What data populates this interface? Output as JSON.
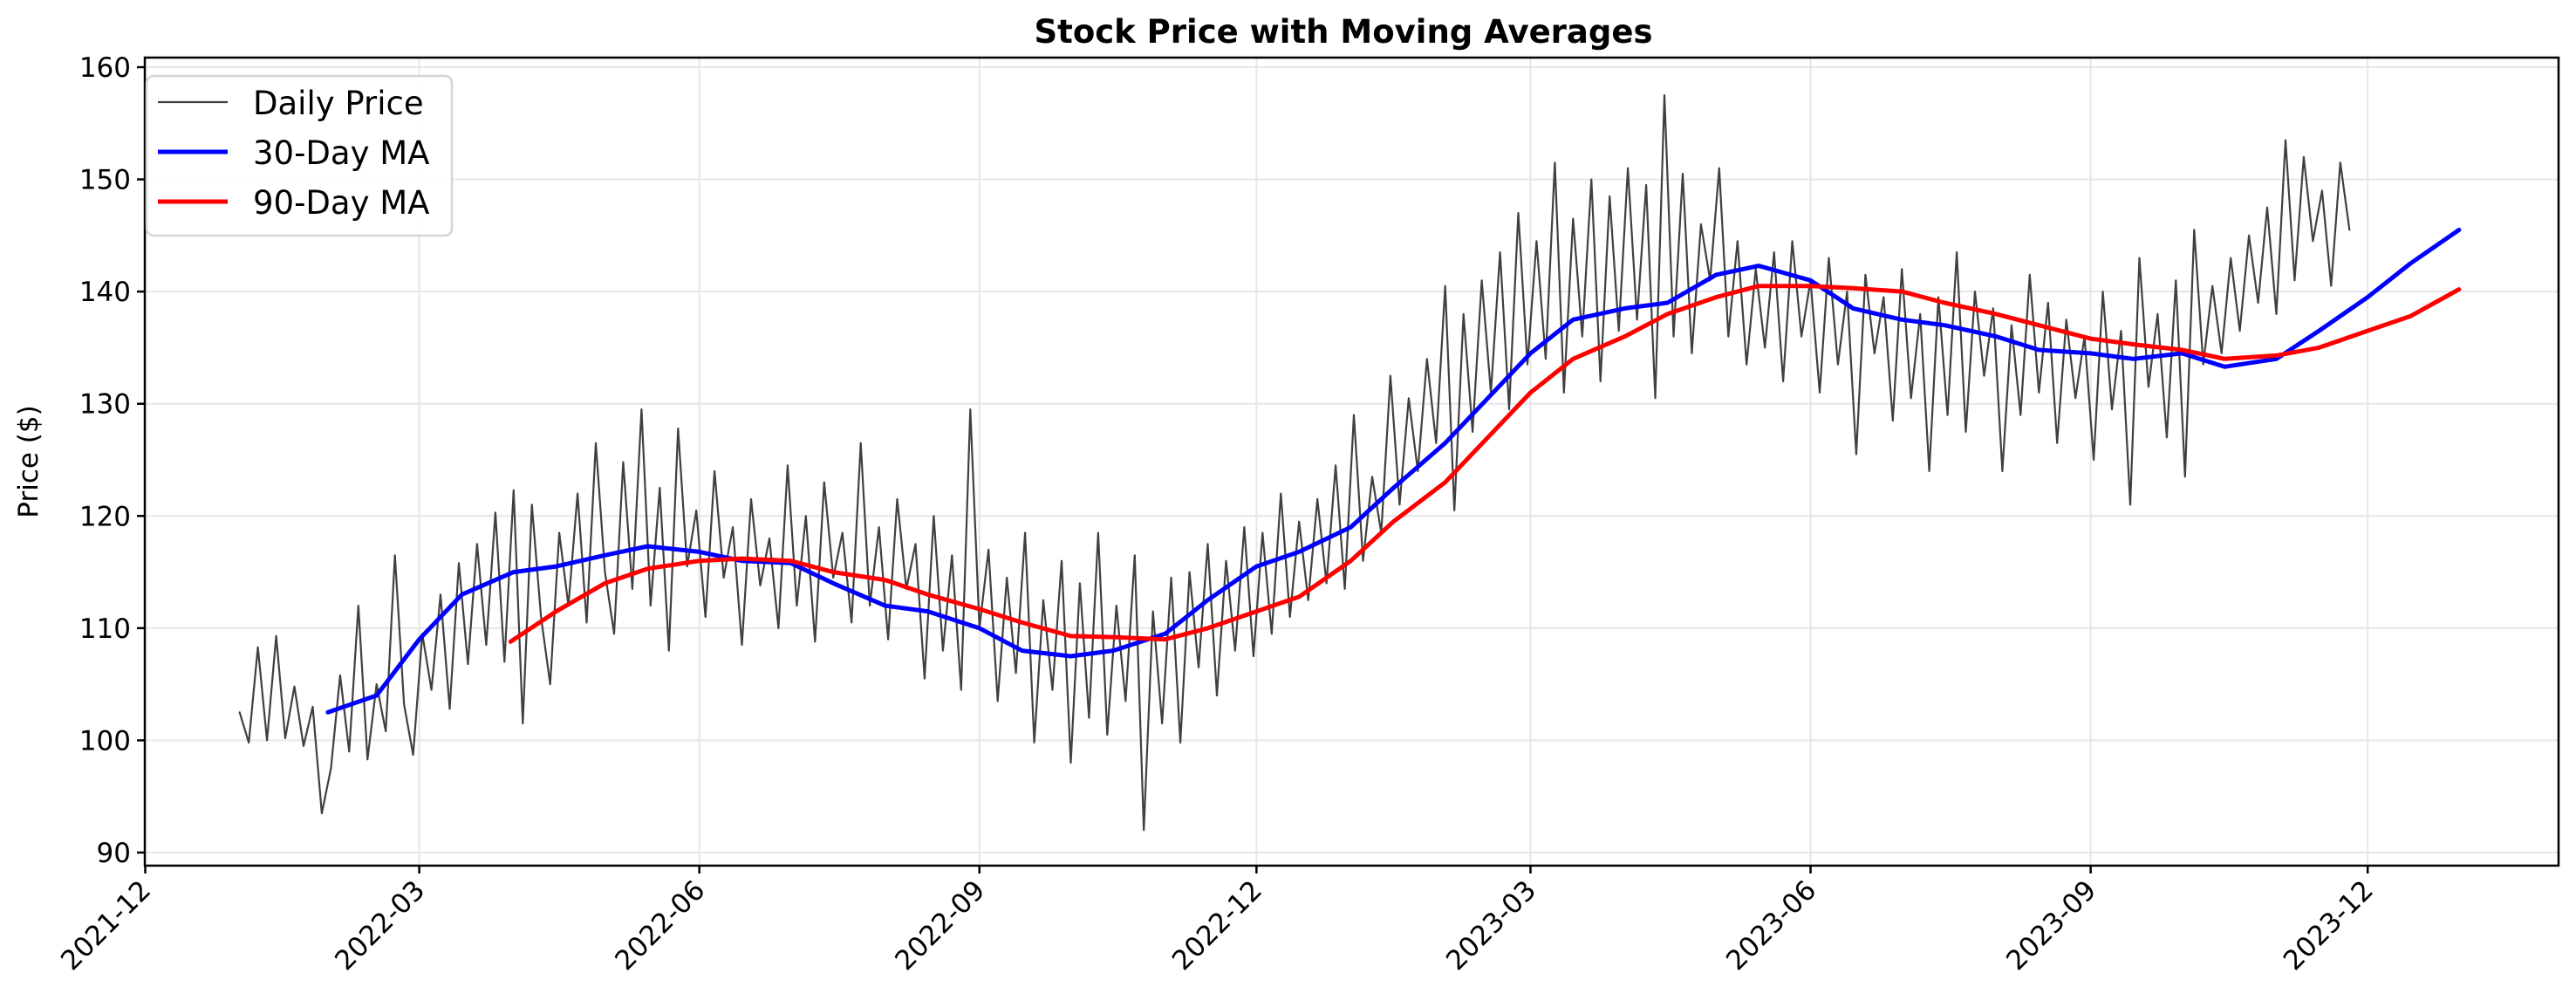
{
  "chart_data": {
    "type": "line",
    "title": "Stock Price with Moving Averages",
    "xlabel": "",
    "ylabel": "Price ($)",
    "ylim": [
      89,
      161
    ],
    "xlim": [
      "2021-11-25",
      "2024-02-05"
    ],
    "yticks": [
      90,
      100,
      110,
      120,
      130,
      140,
      150,
      160
    ],
    "xticks": [
      "2021-12",
      "2022-03",
      "2022-06",
      "2022-09",
      "2022-12",
      "2023-03",
      "2023-06",
      "2023-09",
      "2023-12"
    ],
    "grid": true,
    "legend": {
      "position": "top-left",
      "entries": [
        "Daily Price",
        "30-Day MA",
        "90-Day MA"
      ]
    },
    "series": [
      {
        "name": "Daily Price",
        "color": "#404040",
        "start_date": "2022-01-01",
        "step_days": 3,
        "values": [
          102.5,
          99.8,
          108.3,
          100.0,
          109.3,
          100.2,
          104.8,
          99.5,
          103.0,
          93.5,
          97.5,
          105.8,
          99.0,
          112.0,
          98.3,
          105.0,
          100.8,
          116.5,
          103.2,
          98.7,
          109.5,
          104.5,
          113.0,
          102.8,
          115.8,
          106.8,
          117.5,
          108.5,
          120.3,
          107.0,
          122.3,
          101.5,
          121.0,
          111.0,
          105.0,
          118.5,
          112.0,
          122.0,
          110.5,
          126.5,
          115.0,
          109.5,
          124.8,
          113.5,
          129.5,
          112.0,
          122.5,
          108.0,
          127.8,
          115.5,
          120.5,
          111.0,
          124.0,
          114.5,
          119.0,
          108.5,
          121.5,
          113.8,
          118.0,
          110.0,
          124.5,
          112.0,
          120.0,
          108.8,
          123.0,
          114.5,
          118.5,
          110.5,
          126.5,
          112.0,
          119.0,
          109.0,
          121.5,
          113.5,
          117.5,
          105.5,
          120.0,
          108.0,
          116.5,
          104.5,
          129.5,
          110.0,
          117.0,
          103.5,
          114.5,
          106.0,
          118.5,
          99.8,
          112.5,
          104.5,
          116.0,
          98.0,
          114.0,
          102.0,
          118.5,
          100.5,
          112.0,
          103.5,
          116.5,
          92.0,
          111.5,
          101.5,
          114.5,
          99.8,
          115.0,
          106.5,
          117.5,
          104.0,
          116.0,
          108.0,
          119.0,
          107.5,
          118.5,
          109.5,
          122.0,
          111.0,
          119.5,
          112.5,
          121.5,
          114.0,
          124.5,
          113.5,
          129.0,
          116.0,
          123.5,
          118.5,
          132.5,
          121.0,
          130.5,
          124.0,
          134.0,
          126.5,
          140.5,
          120.5,
          138.0,
          127.5,
          141.0,
          131.0,
          143.5,
          129.5,
          147.0,
          133.5,
          144.5,
          134.0,
          151.5,
          131.0,
          146.5,
          136.0,
          150.0,
          132.0,
          148.5,
          136.5,
          151.0,
          137.5,
          149.5,
          130.5,
          157.5,
          136.0,
          150.5,
          134.5,
          146.0,
          141.0,
          151.0,
          136.0,
          144.5,
          133.5,
          142.0,
          135.0,
          143.5,
          132.0,
          144.5,
          136.0,
          141.0,
          131.0,
          143.0,
          133.5,
          140.0,
          125.5,
          141.5,
          134.5,
          139.5,
          128.5,
          142.0,
          130.5,
          138.0,
          124.0,
          139.5,
          129.0,
          143.5,
          127.5,
          140.0,
          132.5,
          138.5,
          124.0,
          137.0,
          129.0,
          141.5,
          131.0,
          139.0,
          126.5,
          137.5,
          130.5,
          136.0,
          125.0,
          140.0,
          129.5,
          136.5,
          121.0,
          143.0,
          131.5,
          138.0,
          127.0,
          141.0,
          123.5,
          145.5,
          133.5,
          140.5,
          134.5,
          143.0,
          136.5,
          145.0,
          139.0,
          147.5,
          138.0,
          153.5,
          141.0,
          152.0,
          144.5,
          149.0,
          140.5,
          151.5,
          145.5
        ]
      },
      {
        "name": "30-Day MA",
        "color": "#0000ff",
        "points": [
          [
            "2022-01-30",
            102.5
          ],
          [
            "2022-02-15",
            104.0
          ],
          [
            "2022-03-01",
            109.0
          ],
          [
            "2022-03-15",
            113.0
          ],
          [
            "2022-04-01",
            115.0
          ],
          [
            "2022-04-15",
            115.5
          ],
          [
            "2022-05-01",
            116.5
          ],
          [
            "2022-05-15",
            117.3
          ],
          [
            "2022-06-01",
            116.8
          ],
          [
            "2022-06-15",
            116.0
          ],
          [
            "2022-07-01",
            115.8
          ],
          [
            "2022-07-15",
            114.0
          ],
          [
            "2022-08-01",
            112.0
          ],
          [
            "2022-08-15",
            111.5
          ],
          [
            "2022-09-01",
            110.0
          ],
          [
            "2022-09-15",
            108.0
          ],
          [
            "2022-10-01",
            107.5
          ],
          [
            "2022-10-15",
            108.0
          ],
          [
            "2022-11-01",
            109.5
          ],
          [
            "2022-11-15",
            112.5
          ],
          [
            "2022-12-01",
            115.5
          ],
          [
            "2022-12-15",
            116.8
          ],
          [
            "2023-01-01",
            119.0
          ],
          [
            "2023-01-15",
            122.5
          ],
          [
            "2023-02-01",
            126.5
          ],
          [
            "2023-02-15",
            130.5
          ],
          [
            "2023-03-01",
            134.5
          ],
          [
            "2023-03-15",
            137.5
          ],
          [
            "2023-04-01",
            138.5
          ],
          [
            "2023-04-15",
            139.0
          ],
          [
            "2023-05-01",
            141.5
          ],
          [
            "2023-05-15",
            142.3
          ],
          [
            "2023-06-01",
            141.0
          ],
          [
            "2023-06-15",
            138.5
          ],
          [
            "2023-07-01",
            137.5
          ],
          [
            "2023-07-15",
            137.0
          ],
          [
            "2023-08-01",
            136.0
          ],
          [
            "2023-08-15",
            134.8
          ],
          [
            "2023-09-01",
            134.5
          ],
          [
            "2023-09-15",
            134.0
          ],
          [
            "2023-10-01",
            134.5
          ],
          [
            "2023-10-15",
            133.3
          ],
          [
            "2023-11-01",
            134.0
          ],
          [
            "2023-11-15",
            136.5
          ],
          [
            "2023-12-01",
            139.5
          ],
          [
            "2023-12-15",
            142.5
          ],
          [
            "2023-12-31",
            145.5
          ]
        ]
      },
      {
        "name": "90-Day MA",
        "color": "#ff0000",
        "points": [
          [
            "2022-03-31",
            108.8
          ],
          [
            "2022-04-15",
            111.5
          ],
          [
            "2022-05-01",
            114.0
          ],
          [
            "2022-05-15",
            115.3
          ],
          [
            "2022-06-01",
            116.0
          ],
          [
            "2022-06-15",
            116.2
          ],
          [
            "2022-07-01",
            116.0
          ],
          [
            "2022-07-15",
            115.0
          ],
          [
            "2022-08-01",
            114.3
          ],
          [
            "2022-08-15",
            113.0
          ],
          [
            "2022-09-01",
            111.7
          ],
          [
            "2022-09-15",
            110.5
          ],
          [
            "2022-10-01",
            109.3
          ],
          [
            "2022-10-15",
            109.2
          ],
          [
            "2022-11-01",
            109.0
          ],
          [
            "2022-11-15",
            110.0
          ],
          [
            "2022-12-01",
            111.5
          ],
          [
            "2022-12-15",
            112.8
          ],
          [
            "2023-01-01",
            116.0
          ],
          [
            "2023-01-15",
            119.5
          ],
          [
            "2023-02-01",
            123.0
          ],
          [
            "2023-02-15",
            127.0
          ],
          [
            "2023-03-01",
            131.0
          ],
          [
            "2023-03-15",
            134.0
          ],
          [
            "2023-04-01",
            136.0
          ],
          [
            "2023-04-15",
            138.0
          ],
          [
            "2023-05-01",
            139.5
          ],
          [
            "2023-05-15",
            140.5
          ],
          [
            "2023-06-01",
            140.5
          ],
          [
            "2023-06-15",
            140.3
          ],
          [
            "2023-07-01",
            140.0
          ],
          [
            "2023-07-15",
            139.0
          ],
          [
            "2023-08-01",
            138.0
          ],
          [
            "2023-08-15",
            137.0
          ],
          [
            "2023-09-01",
            135.8
          ],
          [
            "2023-09-15",
            135.3
          ],
          [
            "2023-10-01",
            134.8
          ],
          [
            "2023-10-15",
            134.0
          ],
          [
            "2023-11-01",
            134.3
          ],
          [
            "2023-11-15",
            135.0
          ],
          [
            "2023-12-01",
            136.5
          ],
          [
            "2023-12-15",
            137.8
          ],
          [
            "2023-12-31",
            140.2
          ]
        ]
      }
    ]
  }
}
